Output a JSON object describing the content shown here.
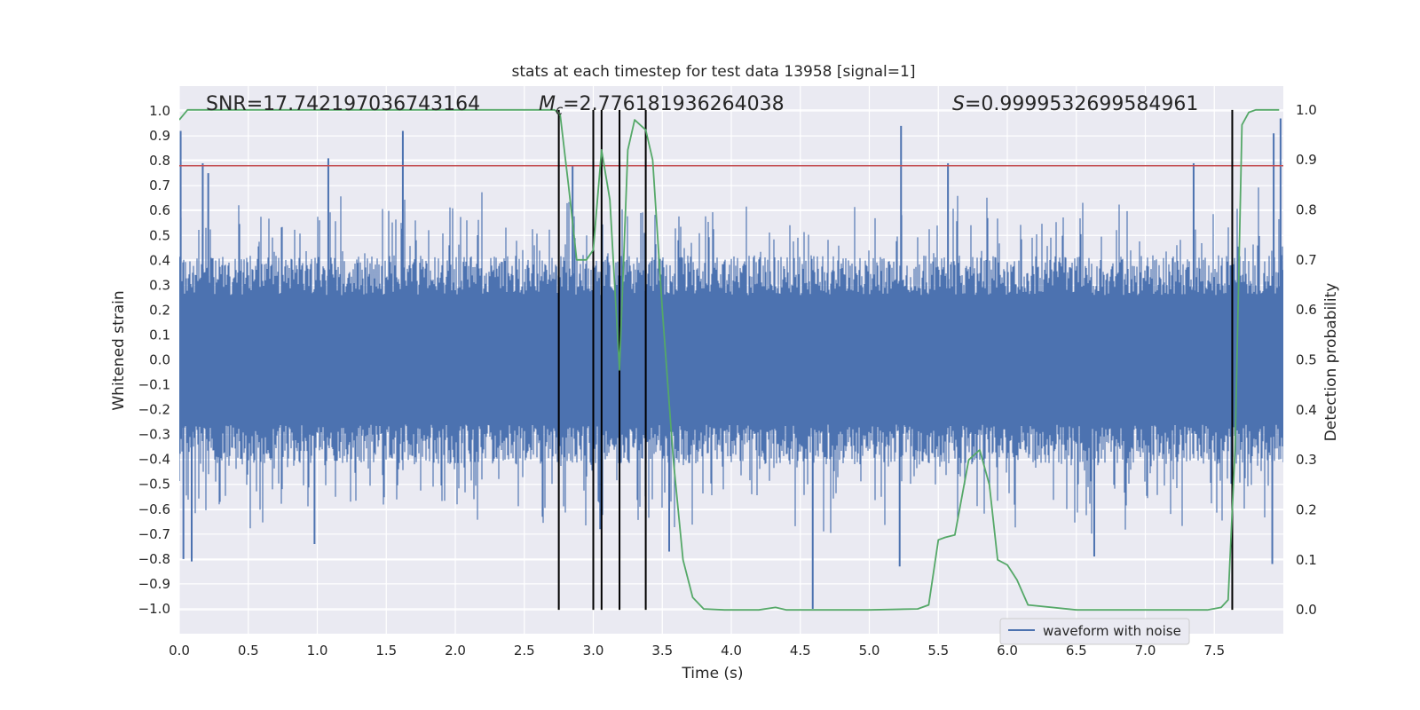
{
  "chart_data": {
    "type": "line",
    "title": "stats at each timestep for test data 13958 [signal=1]",
    "xlabel": "Time (s)",
    "ylabel": "Whitened strain",
    "y2label": "Detection probability",
    "xlim": [
      0.0,
      8.0
    ],
    "ylim": [
      -1.1,
      1.1
    ],
    "y2lim": [
      -0.0476,
      1.0476
    ],
    "xticks": [
      "0.0",
      "0.5",
      "1.0",
      "1.5",
      "2.0",
      "2.5",
      "3.0",
      "3.5",
      "4.0",
      "4.5",
      "5.0",
      "5.5",
      "6.0",
      "6.5",
      "7.0",
      "7.5"
    ],
    "yticks": [
      "1.0",
      "0.9",
      "0.8",
      "0.7",
      "0.6",
      "0.5",
      "0.4",
      "0.3",
      "0.2",
      "0.1",
      "0.0",
      "−0.1",
      "−0.2",
      "−0.3",
      "−0.4",
      "−0.5",
      "−0.6",
      "−0.7",
      "−0.8",
      "−0.9",
      "−1.0"
    ],
    "y2ticks": [
      "1.0",
      "0.9",
      "0.8",
      "0.7",
      "0.6",
      "0.5",
      "0.4",
      "0.3",
      "0.2",
      "0.1",
      "0.0"
    ],
    "stats": {
      "snr": "SNR=17.742197036743164",
      "mc_symbol": "M",
      "mc_subscript": "c",
      "mc_value": "=2.776181936264038",
      "s_symbol": "S",
      "s_value": "=0.9999532699584961"
    },
    "threshold_y": 0.78,
    "event_lines_x": [
      2.75,
      3.0,
      3.06,
      3.19,
      3.38,
      7.63
    ],
    "waveform_series": {
      "name": "waveform with noise",
      "note": "dense whitened strain noise; typical envelope about ±0.4 with spikes",
      "spikes": [
        {
          "x": 0.03,
          "y": -0.8
        },
        {
          "x": 0.09,
          "y": -0.81
        },
        {
          "x": 0.17,
          "y": 0.79
        },
        {
          "x": 0.21,
          "y": 0.75
        },
        {
          "x": 1.08,
          "y": 0.81
        },
        {
          "x": 1.62,
          "y": 0.92
        },
        {
          "x": 0.98,
          "y": -0.74
        },
        {
          "x": 2.85,
          "y": 0.78
        },
        {
          "x": 3.05,
          "y": -0.68
        },
        {
          "x": 3.55,
          "y": -0.77
        },
        {
          "x": 4.59,
          "y": -1.0
        },
        {
          "x": 5.23,
          "y": 0.94
        },
        {
          "x": 5.22,
          "y": -0.83
        },
        {
          "x": 5.57,
          "y": 0.79
        },
        {
          "x": 6.63,
          "y": -0.79
        },
        {
          "x": 7.35,
          "y": 0.79
        },
        {
          "x": 7.93,
          "y": 0.91
        },
        {
          "x": 7.98,
          "y": 0.97
        },
        {
          "x": 7.92,
          "y": -0.82
        },
        {
          "x": 0.01,
          "y": 0.92
        }
      ]
    },
    "probability_series": {
      "name": "Detection probability",
      "x": [
        0.0,
        0.06,
        0.5,
        1.0,
        1.5,
        2.0,
        2.5,
        2.72,
        2.76,
        2.82,
        2.88,
        2.95,
        3.0,
        3.06,
        3.12,
        3.19,
        3.25,
        3.3,
        3.38,
        3.43,
        3.5,
        3.58,
        3.65,
        3.72,
        3.8,
        3.95,
        4.2,
        4.32,
        4.4,
        4.6,
        5.0,
        5.35,
        5.43,
        5.5,
        5.55,
        5.62,
        5.72,
        5.8,
        5.87,
        5.93,
        6.0,
        6.07,
        6.15,
        6.5,
        7.0,
        7.45,
        7.55,
        7.6,
        7.65,
        7.7,
        7.75,
        7.8,
        7.97
      ],
      "y": [
        0.98,
        1.0,
        1.0,
        1.0,
        1.0,
        1.0,
        1.0,
        1.0,
        0.99,
        0.85,
        0.7,
        0.7,
        0.72,
        0.92,
        0.82,
        0.48,
        0.92,
        0.98,
        0.96,
        0.9,
        0.6,
        0.3,
        0.1,
        0.025,
        0.002,
        0.0,
        0.0,
        0.005,
        0.0,
        0.0,
        0.0,
        0.002,
        0.01,
        0.14,
        0.145,
        0.15,
        0.3,
        0.32,
        0.25,
        0.1,
        0.09,
        0.06,
        0.01,
        0.0,
        0.0,
        0.0,
        0.005,
        0.02,
        0.32,
        0.97,
        0.995,
        1.0,
        1.0
      ]
    },
    "legend": {
      "label": "waveform with noise",
      "placement": "lower-right"
    },
    "grid": true,
    "colors": {
      "background": "#eaeaf2",
      "grid": "#ffffff",
      "waveform": "#4c72b0",
      "probability": "#55a868",
      "threshold": "#c44e52",
      "event_lines": "#000000",
      "text": "#262626"
    }
  }
}
